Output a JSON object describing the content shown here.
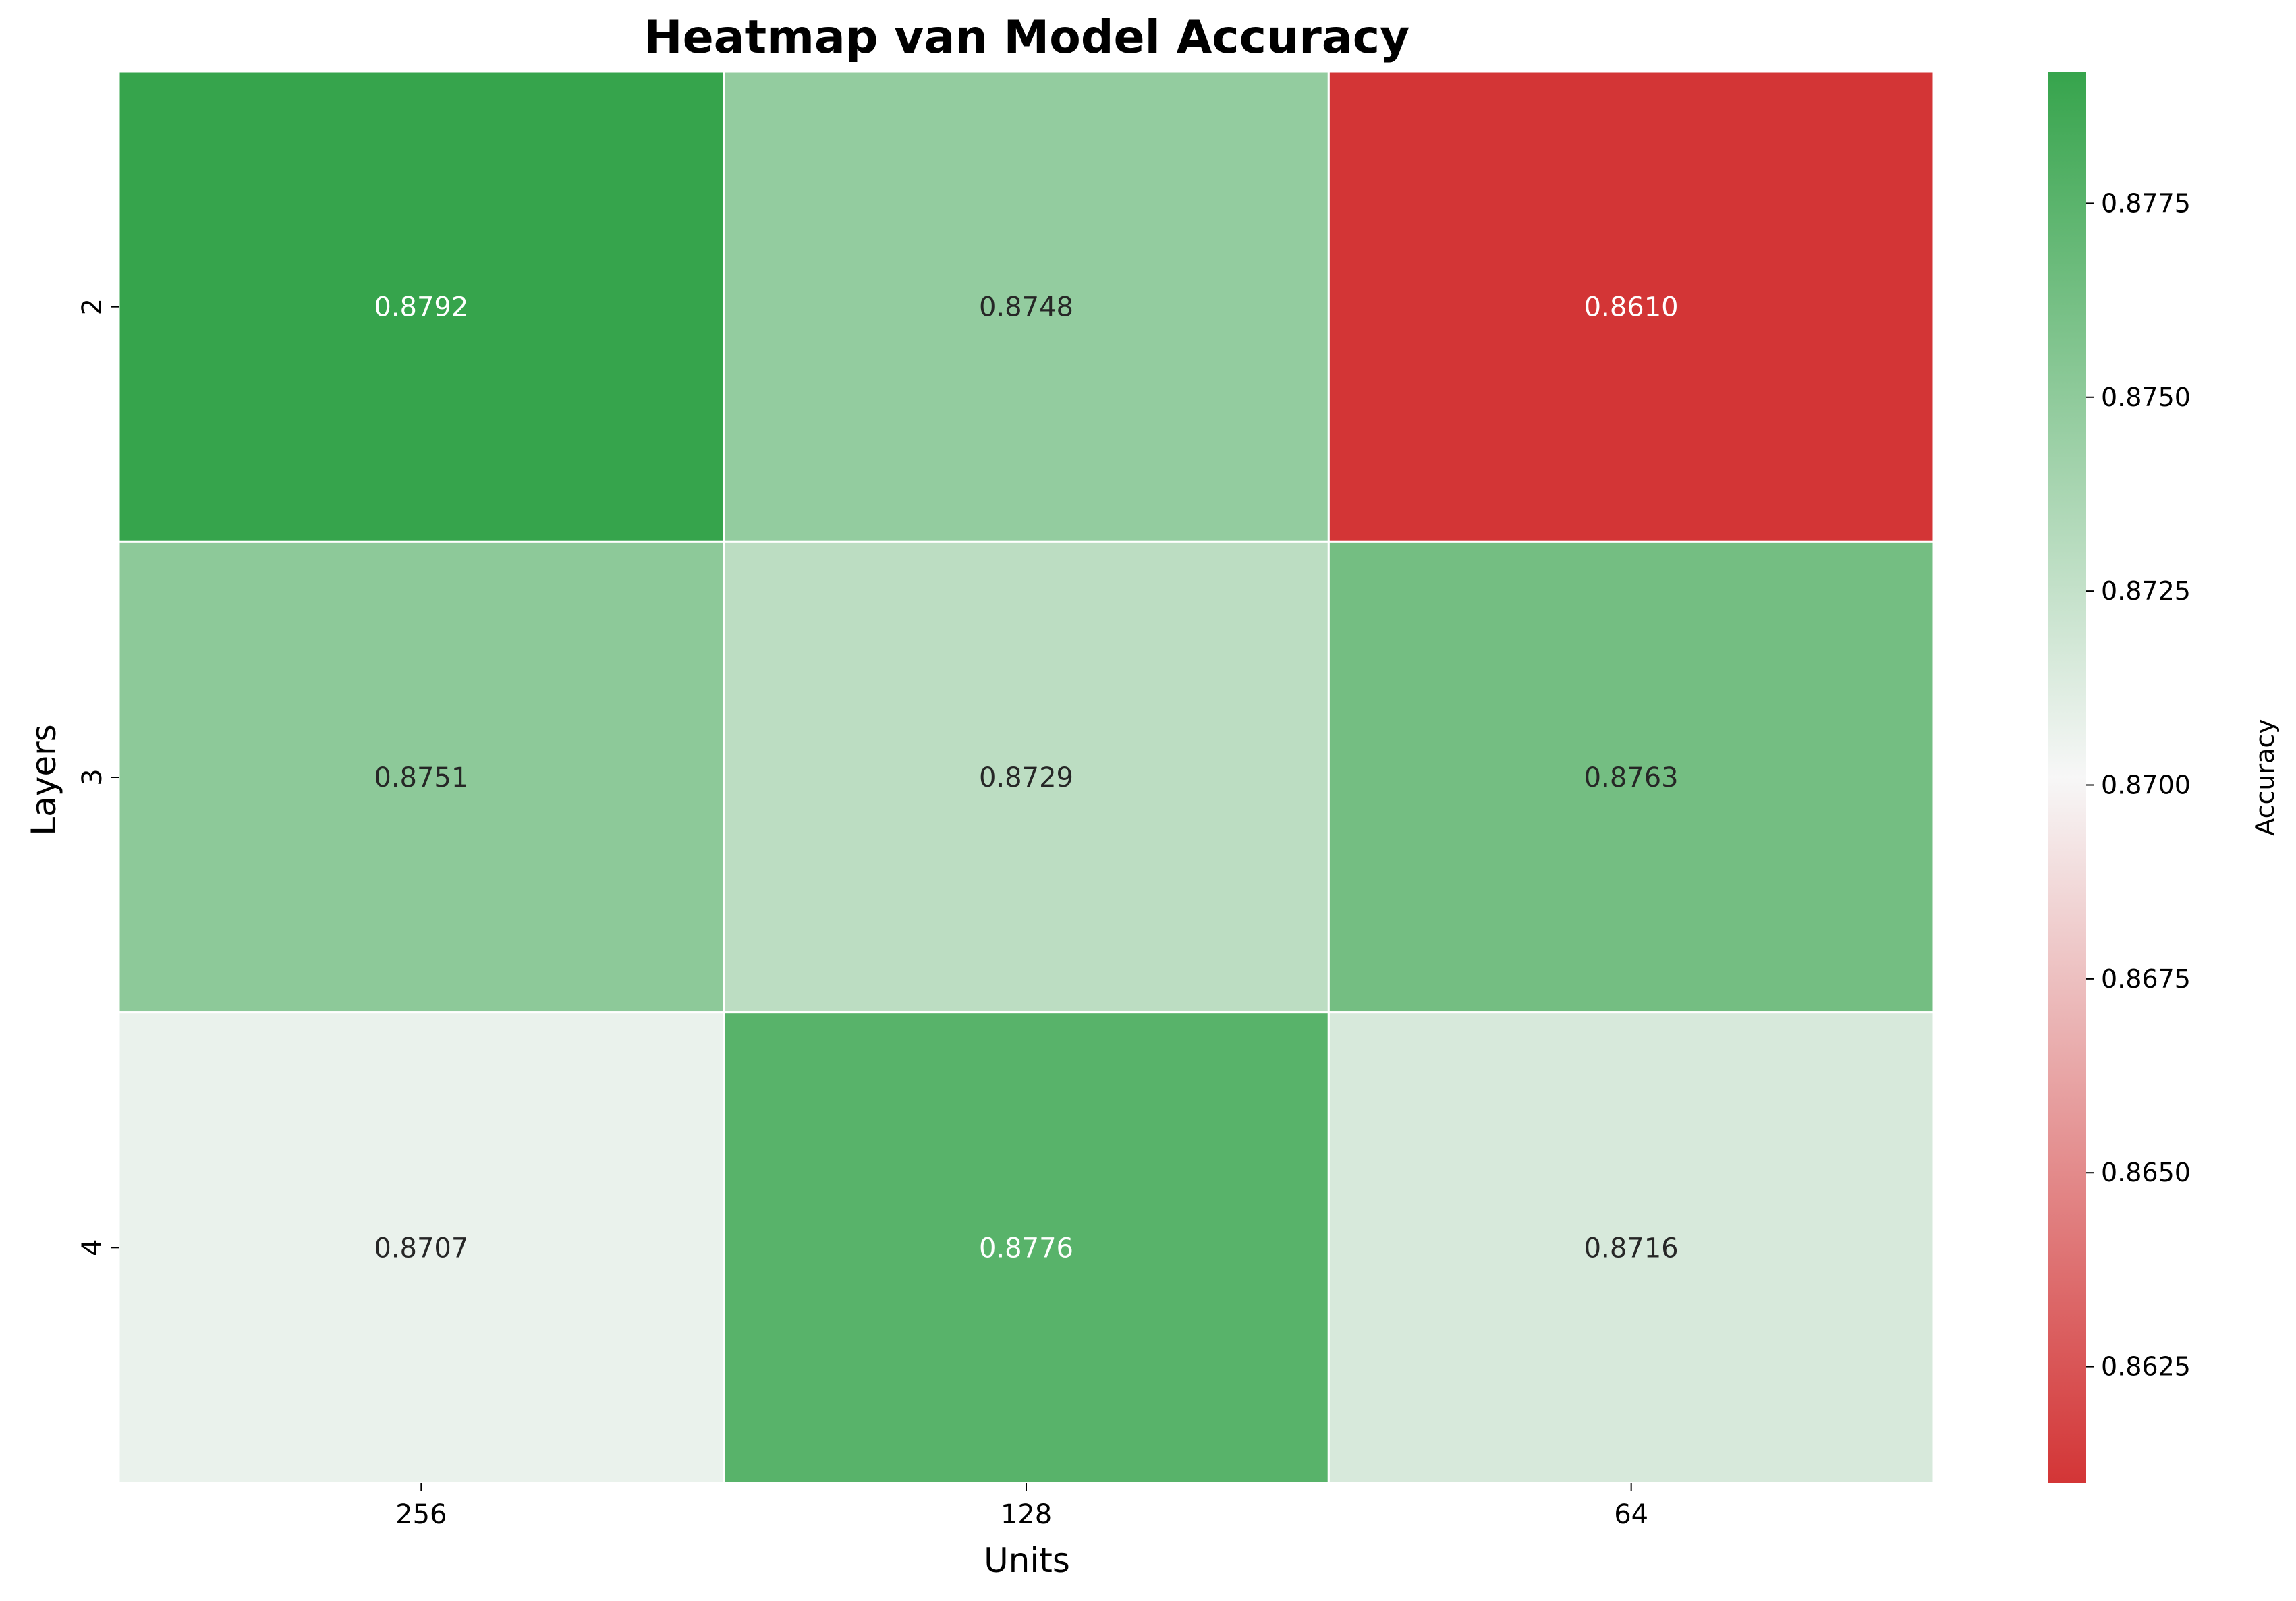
{
  "chart_data": {
    "type": "heatmap",
    "title": "Heatmap van Model Accuracy",
    "xlabel": "Units",
    "ylabel": "Layers",
    "x_categories": [
      "256",
      "128",
      "64"
    ],
    "y_categories": [
      "2",
      "3",
      "4"
    ],
    "values": [
      [
        0.8792,
        0.8748,
        0.861
      ],
      [
        0.8751,
        0.8729,
        0.8763
      ],
      [
        0.8707,
        0.8776,
        0.8716
      ]
    ],
    "value_labels": [
      [
        "0.8792",
        "0.8748",
        "0.8610"
      ],
      [
        "0.8751",
        "0.8729",
        "0.8763"
      ],
      [
        "0.8707",
        "0.8776",
        "0.8716"
      ]
    ],
    "colorbar": {
      "label": "Accuracy",
      "range": [
        0.861,
        0.8792
      ],
      "ticks": [
        "0.8625",
        "0.8650",
        "0.8675",
        "0.8700",
        "0.8725",
        "0.8750",
        "0.8775"
      ],
      "low_color": "#d33536",
      "mid_color": "#f7f7f7",
      "high_color": "#36a44c"
    }
  }
}
